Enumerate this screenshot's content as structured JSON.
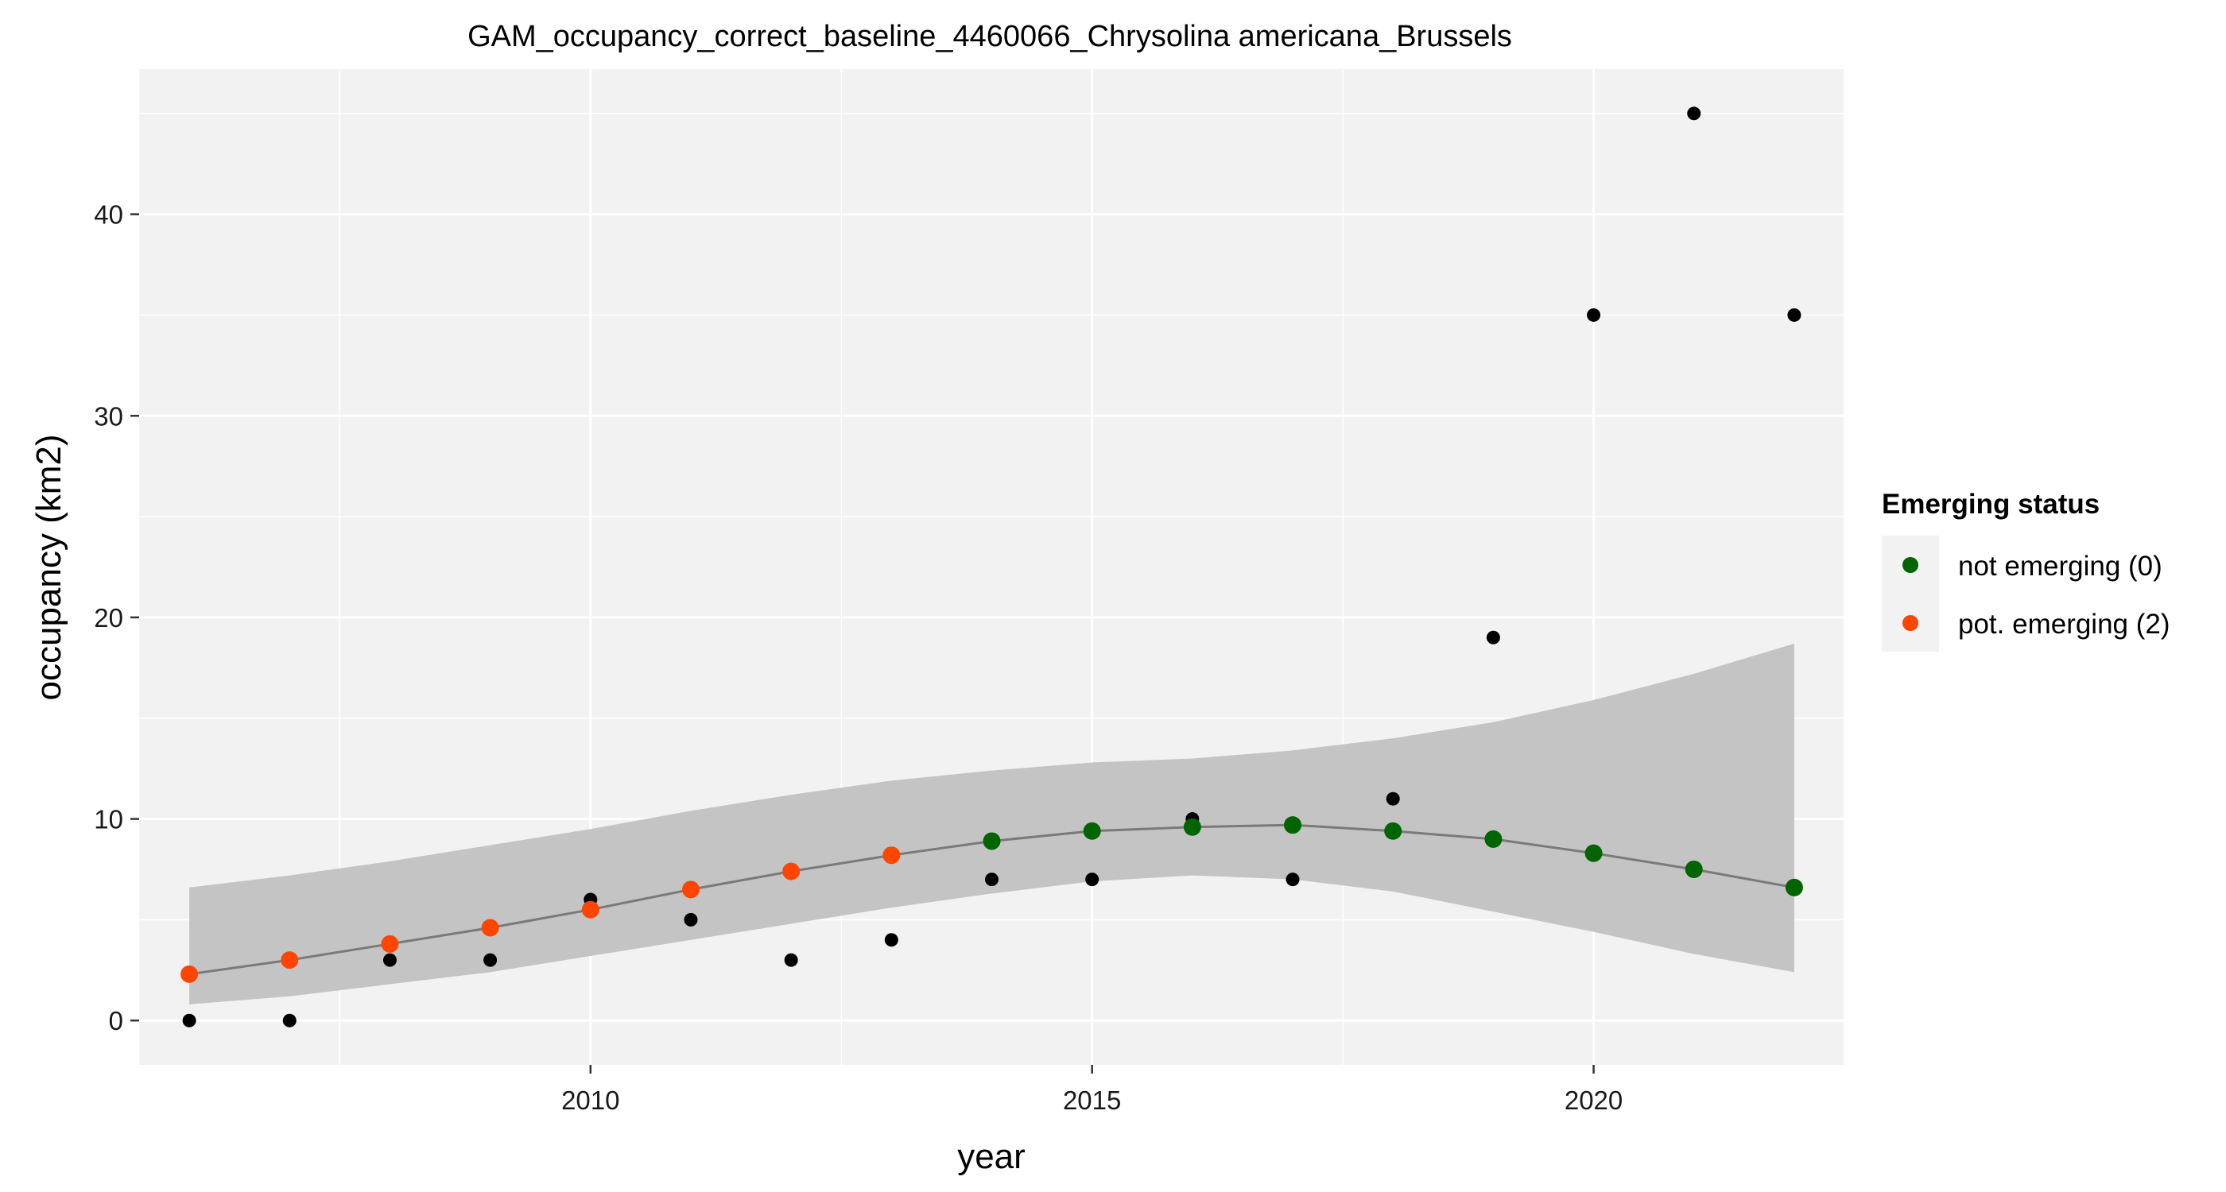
{
  "chart_data": {
    "type": "scatter",
    "title": "GAM_occupancy_correct_baseline_4460066_Chrysolina americana_Brussels",
    "xlabel": "year",
    "ylabel": "occupancy (km2)",
    "xlim": [
      2005.5,
      2022.5
    ],
    "ylim": [
      -2.2,
      47.2
    ],
    "x_ticks": [
      2010,
      2015,
      2020
    ],
    "y_ticks": [
      0,
      10,
      20,
      30,
      40
    ],
    "grid": true,
    "legend_position": "right",
    "observed": {
      "x": [
        2006,
        2007,
        2008,
        2009,
        2010,
        2011,
        2012,
        2013,
        2014,
        2015,
        2016,
        2017,
        2018,
        2019,
        2020,
        2021,
        2022
      ],
      "y": [
        0,
        0,
        3,
        3,
        6,
        5,
        3,
        4,
        7,
        7,
        10,
        7,
        11,
        19,
        35,
        45,
        35
      ]
    },
    "fit": {
      "x": [
        2006,
        2007,
        2008,
        2009,
        2010,
        2011,
        2012,
        2013,
        2014,
        2015,
        2016,
        2017,
        2018,
        2019,
        2020,
        2021,
        2022
      ],
      "y": [
        2.3,
        3.0,
        3.8,
        4.6,
        5.5,
        6.5,
        7.4,
        8.2,
        8.9,
        9.4,
        9.6,
        9.7,
        9.4,
        9.0,
        8.3,
        7.5,
        6.6
      ],
      "lower": [
        0.8,
        1.2,
        1.8,
        2.4,
        3.2,
        4.0,
        4.8,
        5.6,
        6.3,
        6.9,
        7.2,
        7.0,
        6.4,
        5.4,
        4.4,
        3.3,
        2.4
      ],
      "upper": [
        6.6,
        7.2,
        7.9,
        8.7,
        9.5,
        10.4,
        11.2,
        11.9,
        12.4,
        12.8,
        13.0,
        13.4,
        14.0,
        14.8,
        15.9,
        17.2,
        18.7
      ],
      "status": [
        2,
        2,
        2,
        2,
        2,
        2,
        2,
        2,
        0,
        0,
        0,
        0,
        0,
        0,
        0,
        0,
        0
      ]
    },
    "legend": {
      "title": "Emerging status",
      "entries": [
        {
          "label": "not emerging (0)",
          "color": "#006400"
        },
        {
          "label": "pot. emerging (2)",
          "color": "#FF4500"
        }
      ]
    },
    "colors": {
      "panel": "#f2f2f2",
      "band": "#c4c4c4",
      "fit_line": "#7a7a7a",
      "observed": "#000000"
    }
  }
}
